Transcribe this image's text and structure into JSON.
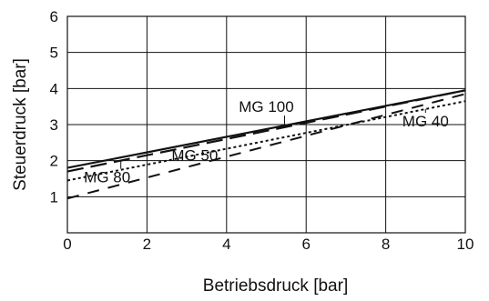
{
  "chart_data": {
    "type": "line",
    "xlabel": "Betriebsdruck [bar]",
    "ylabel": "Steuerdruck [bar]",
    "xlim": [
      0,
      10
    ],
    "ylim": [
      0,
      6
    ],
    "xticks": [
      "0",
      "2",
      "4",
      "6",
      "8",
      "10"
    ],
    "yticks": [
      "1",
      "2",
      "3",
      "4",
      "5",
      "6"
    ],
    "grid": true,
    "series": [
      {
        "name": "MG 100",
        "style": "solid",
        "color": "#111111",
        "x": [
          0,
          10
        ],
        "y": [
          1.8,
          3.95
        ]
      },
      {
        "name": "MG 80",
        "style": "long-dash",
        "color": "#111111",
        "x": [
          0,
          10
        ],
        "y": [
          1.7,
          3.95
        ]
      },
      {
        "name": "MG 40",
        "style": "dotted",
        "color": "#111111",
        "x": [
          0,
          10
        ],
        "y": [
          1.45,
          3.65
        ]
      },
      {
        "name": "MG 50",
        "style": "dashed",
        "color": "#111111",
        "x": [
          0,
          10
        ],
        "y": [
          0.95,
          3.85
        ]
      }
    ],
    "annotations": [
      {
        "text": "MG 100",
        "series": "MG 100",
        "x": 5.0,
        "y": 3.25
      },
      {
        "text": "MG 80",
        "series": "MG 80",
        "x": 1.0,
        "y": 1.85
      },
      {
        "text": "MG 40",
        "series": "MG 40",
        "x": 9.0,
        "y": 3.4
      },
      {
        "text": "MG 50",
        "series": "MG 50",
        "x": 3.2,
        "y": 1.9
      }
    ]
  }
}
